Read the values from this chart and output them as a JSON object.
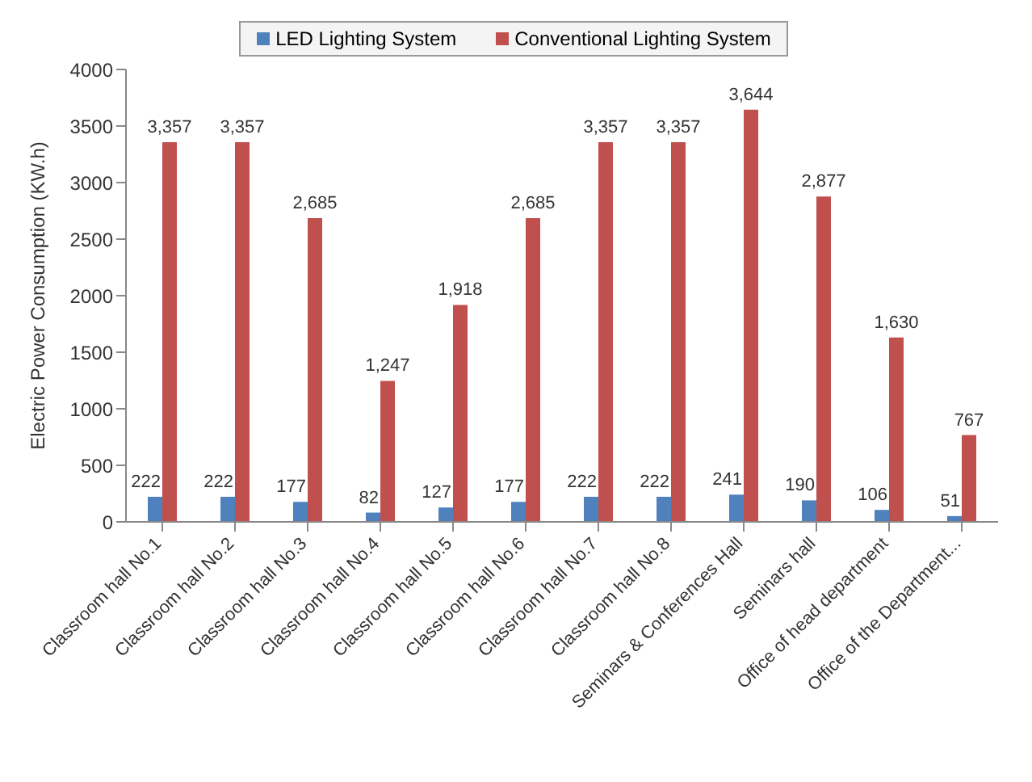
{
  "chart_data": {
    "type": "bar",
    "ylabel": "Electric Power Consumption (KW.h)",
    "categories": [
      "Classroom hall No.1",
      "Classroom hall No.2",
      "Classroom hall No.3",
      "Classroom hall No.4",
      "Classroom hall No.5",
      "Classroom hall No.6",
      "Classroom hall No.7",
      "Classroom hall No.8",
      "Seminars & Conferences Hall",
      "Seminars hall",
      "Office of head department",
      "Office of the Department..."
    ],
    "series": [
      {
        "name": "LED Lighting System",
        "color": "#4f81bd",
        "values": [
          222,
          222,
          177,
          82,
          127,
          177,
          222,
          222,
          241,
          190,
          106,
          51
        ],
        "value_labels": [
          "222",
          "222",
          "177",
          "82",
          "127",
          "177",
          "222",
          "222",
          "241",
          "190",
          "106",
          "51"
        ]
      },
      {
        "name": "Conventional Lighting System",
        "color": "#c0504d",
        "values": [
          3357,
          3357,
          2685,
          1247,
          1918,
          2685,
          3357,
          3357,
          3644,
          2877,
          1630,
          767
        ],
        "value_labels": [
          "3,357",
          "3,357",
          "2,685",
          "1,247",
          "1,918",
          "2,685",
          "3,357",
          "3,357",
          "3,644",
          "2,877",
          "1,630",
          "767"
        ]
      }
    ],
    "ylim": [
      0,
      4000
    ],
    "yticks": [
      0,
      500,
      1000,
      1500,
      2000,
      2500,
      3000,
      3500,
      4000
    ],
    "grid": false,
    "legend": "top"
  }
}
